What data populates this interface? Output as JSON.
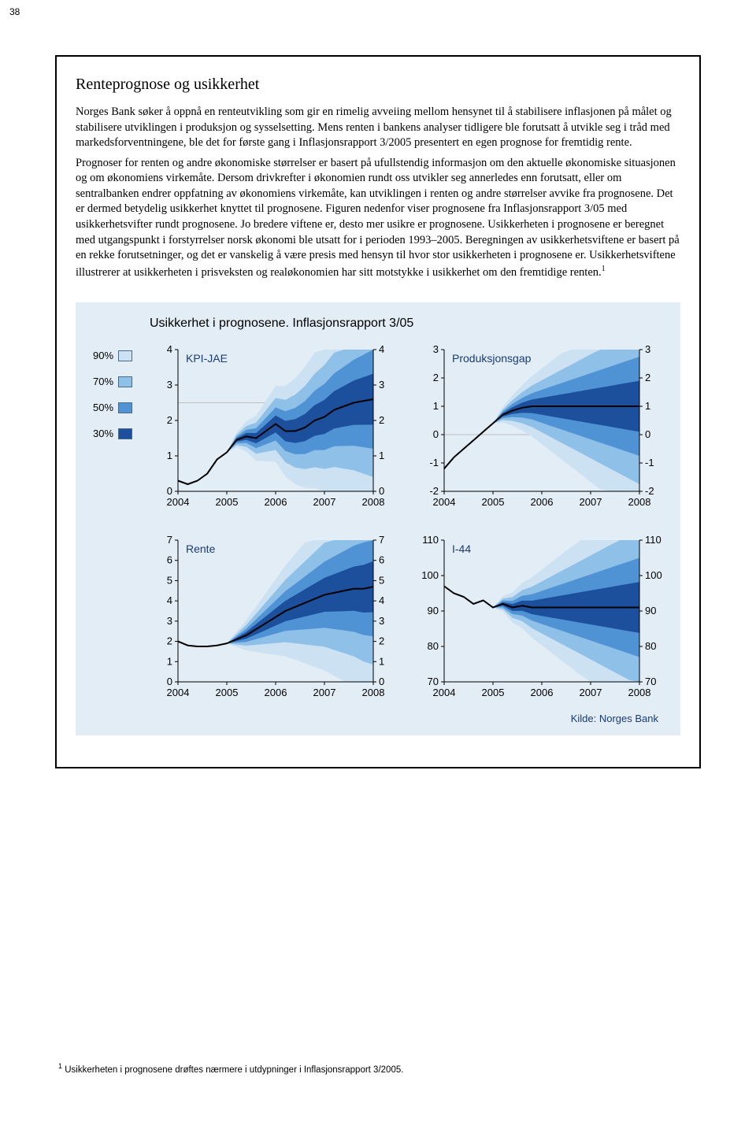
{
  "page_number": "38",
  "title": "Renteprognose og usikkerhet",
  "paragraph": "Norges Bank søker å oppnå en renteutvikling som gir en rimelig avveiing mellom hensynet til å stabilisere inflasjonen på målet og stabilisere utviklingen i produksjon og sysselsetting. Mens renten i bankens analyser tidligere ble forutsatt å utvikle seg i tråd med markedsforventningene, ble det for første gang i Inflasjonsrapport 3/2005 presentert en egen prognose for fremtidig rente.",
  "paragraph2": "Prognoser for renten og andre økonomiske størrelser er basert på ufullstendig informasjon om den aktuelle økonomiske situasjonen og om økonomiens virkemåte. Dersom drivkrefter i økonomien rundt oss utvikler seg annerledes enn forutsatt, eller om sentralbanken endrer oppfatning av økonomiens virkemåte, kan utviklingen i renten og andre størrelser avvike fra prognosene. Det er dermed betydelig usikkerhet knyttet til prognosene. Figuren nedenfor viser prognosene fra Inflasjonsrapport 3/05 med usikkerhetsvifter rundt prognosene. Jo bredere viftene er, desto mer usikre er prognosene. Usikkerheten i prognosene er beregnet med utgangspunkt i forstyrrelser norsk økonomi ble utsatt for i perioden 1993–2005. Beregningen av usikkerhetsviftene er basert på en rekke forutsetninger, og det er vanskelig å være presis med hensyn til hvor stor usikkerheten i prognosene er. Usikkerhetsviftene illustrerer at usikkerheten i prisveksten og realøkonomien har sitt motstykke i usikkerhet om den fremtidige renten.",
  "chart_header": "Usikkerhet i prognosene. Inflasjonsrapport 3/05",
  "legend": [
    {
      "label": "90%",
      "color": "#cce1f2"
    },
    {
      "label": "70%",
      "color": "#8fc0e8"
    },
    {
      "label": "50%",
      "color": "#4f93d4"
    },
    {
      "label": "30%",
      "color": "#1c4f9c"
    }
  ],
  "fan_colors": {
    "c90": "#cce1f2",
    "c70": "#8fc0e8",
    "c50": "#4f93d4",
    "c30": "#1c4f9c"
  },
  "charts": {
    "kpijae": {
      "title": "KPI-JAE",
      "ymin": 0,
      "ymax": 4,
      "yticks": [
        0,
        1,
        2,
        3,
        4
      ],
      "xticks": [
        "2004",
        "2005",
        "2006",
        "2007",
        "2008"
      ],
      "target_line": 2.5,
      "mean": [
        0.3,
        0.2,
        0.3,
        0.5,
        0.9,
        1.1,
        1.45,
        1.55,
        1.5,
        1.7,
        1.9,
        1.7,
        1.7,
        1.8,
        2.0,
        2.1,
        2.3,
        2.4,
        2.5,
        2.55,
        2.6
      ],
      "fan_start_index": 5
    },
    "gap": {
      "title": "Produksjonsgap",
      "ymin": -2,
      "ymax": 3,
      "yticks": [
        -2,
        -1,
        0,
        1,
        2,
        3
      ],
      "xticks": [
        "2004",
        "2005",
        "2006",
        "2007",
        "2008"
      ],
      "mean": [
        -1.2,
        -0.8,
        -0.5,
        -0.2,
        0.1,
        0.4,
        0.7,
        0.85,
        0.95,
        1.0,
        1.0,
        1.0,
        1.0,
        1.0,
        1.0,
        1.0,
        1.0,
        1.0,
        1.0,
        1.0,
        1.0
      ],
      "fan_start_index": 5
    },
    "rente": {
      "title": "Rente",
      "ymin": 0,
      "ymax": 7,
      "yticks": [
        0,
        1,
        2,
        3,
        4,
        5,
        6,
        7
      ],
      "xticks": [
        "2004",
        "2005",
        "2006",
        "2007",
        "2008"
      ],
      "mean": [
        2.0,
        1.8,
        1.75,
        1.75,
        1.8,
        1.9,
        2.1,
        2.3,
        2.6,
        2.9,
        3.2,
        3.5,
        3.7,
        3.9,
        4.1,
        4.3,
        4.4,
        4.5,
        4.6,
        4.6,
        4.7
      ],
      "fan_start_index": 5
    },
    "i44": {
      "title": "I-44",
      "ymin": 70,
      "ymax": 110,
      "yticks": [
        70,
        80,
        90,
        100,
        110
      ],
      "xticks": [
        "2004",
        "2005",
        "2006",
        "2007",
        "2008"
      ],
      "mean": [
        97,
        95,
        94,
        92,
        93,
        91,
        92,
        91,
        91.5,
        91,
        91,
        91,
        91,
        91,
        91,
        91,
        91,
        91,
        91,
        91,
        91
      ],
      "fan_start_index": 5
    }
  },
  "fan_spread_factors": {
    "s30": 0.18,
    "s50": 0.35,
    "s70": 0.55,
    "s90": 0.8
  },
  "source": "Kilde: Norges Bank",
  "footnote": "Usikkerheten i prognosene drøftes nærmere i utdypninger i Inflasjonsrapport 3/2005."
}
